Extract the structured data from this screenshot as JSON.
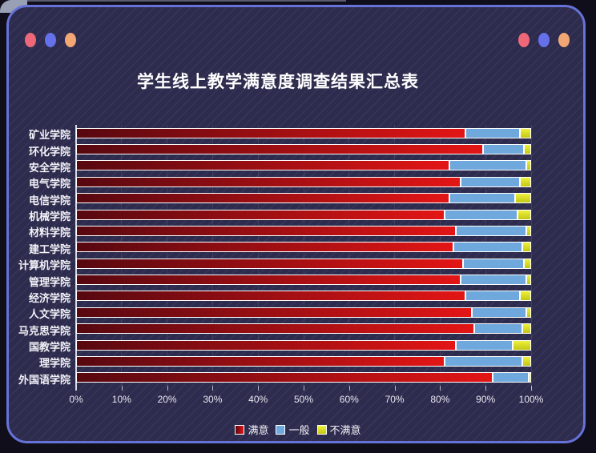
{
  "window": {
    "dot_colors": [
      "#ee6878",
      "#6471ea",
      "#f2a673"
    ],
    "border_color": "#6672d8",
    "background_color": "#2e2c4e"
  },
  "title": "学生线上教学满意度调查结果汇总表",
  "chart_data": {
    "type": "bar",
    "orientation": "horizontal",
    "stacked": true,
    "unit": "percent",
    "title": "学生线上教学满意度调查结果汇总表",
    "categories": [
      "矿业学院",
      "环化学院",
      "安全学院",
      "电气学院",
      "电信学院",
      "机械学院",
      "材料学院",
      "建工学院",
      "计算机学院",
      "管理学院",
      "经济学院",
      "人文学院",
      "马克思学院",
      "国教学院",
      "理学院",
      "外国语学院"
    ],
    "series": [
      {
        "name": "满意",
        "color": "#e31515",
        "color_dark": "#570810",
        "values": [
          85.5,
          89.5,
          82,
          84.5,
          82,
          81,
          83.5,
          83,
          85,
          84.5,
          85.5,
          87,
          87.5,
          83.5,
          81,
          91.5
        ]
      },
      {
        "name": "一般",
        "color": "#6fa8dc",
        "values": [
          12,
          9,
          17,
          13,
          14.5,
          16,
          15.5,
          15,
          13.5,
          14.5,
          12,
          12,
          10.5,
          12.5,
          17,
          8
        ]
      },
      {
        "name": "不满意",
        "color": "#c3c714",
        "color_light": "#eef23e",
        "values": [
          2.5,
          1.5,
          1,
          2.5,
          3.5,
          3,
          1,
          2,
          1.5,
          1,
          2.5,
          1,
          2,
          4,
          2,
          0.5
        ]
      }
    ],
    "x_ticks": [
      "0%",
      "10%",
      "20%",
      "30%",
      "40%",
      "50%",
      "60%",
      "70%",
      "80%",
      "90%",
      "100%"
    ],
    "xlim": [
      0,
      100
    ],
    "grid": true,
    "legend_position": "bottom"
  }
}
